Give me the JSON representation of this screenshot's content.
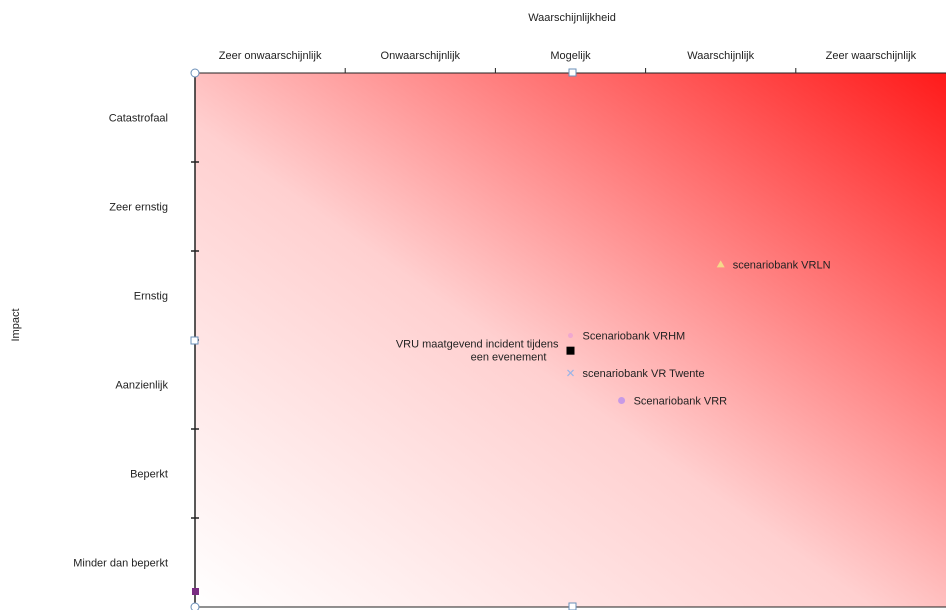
{
  "chart_data": {
    "type": "scatter",
    "title": "",
    "xlabel": "Waarschijnlijkheid",
    "ylabel": "Impact",
    "x_categories": [
      "Zeer onwaarschijnlijk",
      "Onwaarschijnlijk",
      "Mogelijk",
      "Waarschijnlijk",
      "Zeer waarschijnlijk"
    ],
    "y_categories": [
      "Minder dan beperkt",
      "Beperkt",
      "Aanzienlijk",
      "Ernstig",
      "Zeer ernstig",
      "Catastrofaal"
    ],
    "xlim": [
      0.5,
      5.5
    ],
    "ylim": [
      0.5,
      6.5
    ],
    "gradient": {
      "from": "#ffffff",
      "to": "#ff1a1a",
      "direction": "bottom-left to top-right"
    },
    "series": [
      {
        "name": "scenariobank VRLN",
        "marker": "triangle",
        "color": "#f5d98a",
        "x": 4.0,
        "y": 4.35,
        "label_side": "right"
      },
      {
        "name": "Scenariobank VRHM",
        "marker": "circle-small",
        "color": "#f0a8d0",
        "x": 3.0,
        "y": 3.55,
        "label_side": "right"
      },
      {
        "name": "VRU maatgevend incident tijdens een evenement",
        "marker": "square",
        "color": "#000000",
        "x": 3.0,
        "y": 3.38,
        "label_side": "left"
      },
      {
        "name": "scenariobank VR Twente",
        "marker": "cross",
        "color": "#9ab4e8",
        "x": 3.0,
        "y": 3.13,
        "label_side": "right"
      },
      {
        "name": "Scenariobank VRR",
        "marker": "circle",
        "color": "#c79ae6",
        "x": 3.34,
        "y": 2.82,
        "label_side": "right"
      }
    ]
  }
}
